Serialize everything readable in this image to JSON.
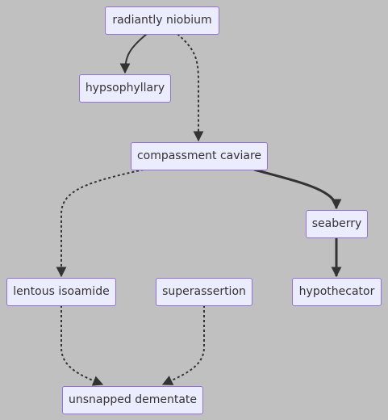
{
  "diagram": {
    "colors": {
      "background": "#c0c0c0",
      "node_fill": "#ececff",
      "node_border": "#9370db",
      "edge": "#333333"
    },
    "nodes": {
      "radiantly_niobium": "radiantly niobium",
      "hypsophyllary": "hypsophyllary",
      "compassment_caviare": "compassment caviare",
      "seaberry": "seaberry",
      "lentous_isoamide": "lentous isoamide",
      "superassertion": "superassertion",
      "hypothecator": "hypothecator",
      "unsnapped_dementate": "unsnapped dementate"
    },
    "edges": [
      {
        "from": "radiantly niobium",
        "to": "hypsophyllary",
        "style": "solid"
      },
      {
        "from": "radiantly niobium",
        "to": "compassment caviare",
        "style": "dotted"
      },
      {
        "from": "compassment caviare",
        "to": "seaberry",
        "style": "thick"
      },
      {
        "from": "compassment caviare",
        "to": "lentous isoamide",
        "style": "dotted"
      },
      {
        "from": "seaberry",
        "to": "hypothecator",
        "style": "thick"
      },
      {
        "from": "lentous isoamide",
        "to": "unsnapped dementate",
        "style": "dotted"
      },
      {
        "from": "superassertion",
        "to": "unsnapped dementate",
        "style": "dotted"
      }
    ]
  }
}
